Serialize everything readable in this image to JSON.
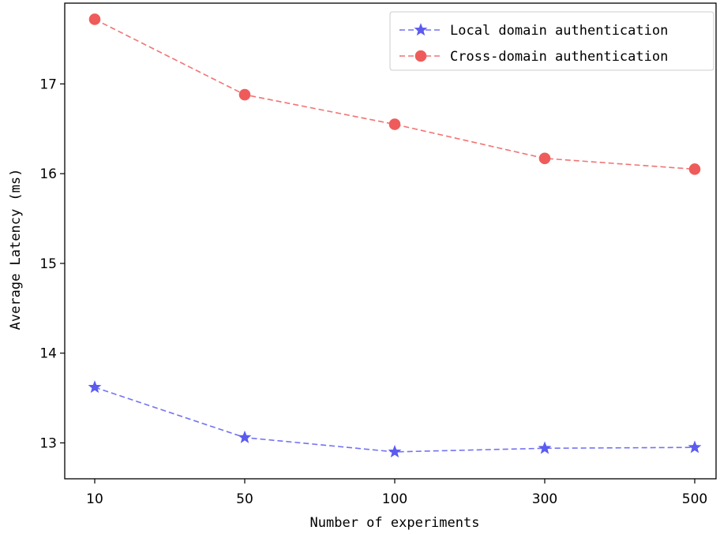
{
  "chart_data": {
    "type": "line",
    "title": "",
    "xlabel": "Number of experiments",
    "ylabel": "Average Latency (ms)",
    "categories": [
      "10",
      "50",
      "100",
      "300",
      "500"
    ],
    "yticks": [
      13,
      14,
      15,
      16,
      17
    ],
    "ylim": [
      12.6,
      17.9
    ],
    "grid": false,
    "legend_position": "top-right",
    "series": [
      {
        "name": "Local domain authentication",
        "values": [
          13.62,
          13.06,
          12.9,
          12.94,
          12.95
        ],
        "color": "#5b5bef",
        "marker": "star",
        "line_style": "dashed"
      },
      {
        "name": "Cross-domain authentication",
        "values": [
          17.72,
          16.88,
          16.55,
          16.17,
          16.05
        ],
        "color": "#ef5b5b",
        "marker": "circle",
        "line_style": "dashed"
      }
    ]
  }
}
